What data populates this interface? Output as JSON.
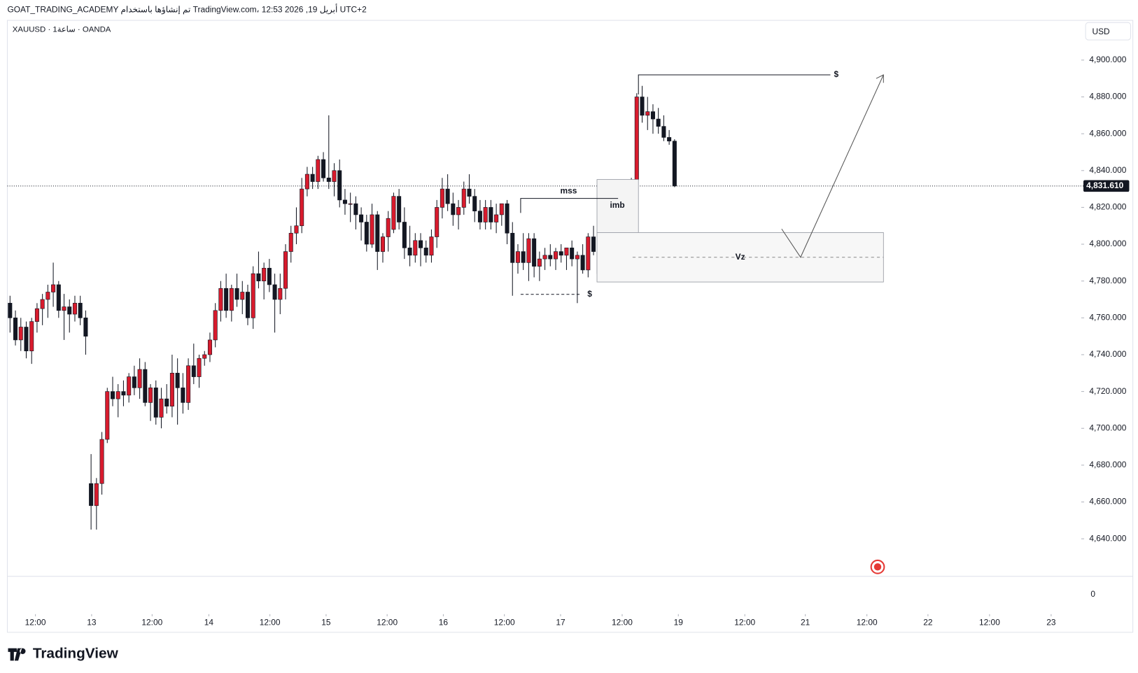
{
  "header": "GOAT_TRADING_ACADEMY تم إنشاؤها باستخدام TradingView.com، 12:53 2026 ,19 أبريل UTC+2",
  "symbol": "XAUUSD · 1ساعة · OANDA",
  "currency": "USD",
  "logo": "TradingView",
  "chart_data": {
    "type": "candlestick",
    "up_color": "#d81b2d",
    "down_color": "#131722",
    "candles": [
      [
        4768,
        4772,
        4752,
        4760
      ],
      [
        4760,
        4764,
        4745,
        4748
      ],
      [
        4748,
        4760,
        4742,
        4755
      ],
      [
        4755,
        4758,
        4738,
        4742
      ],
      [
        4742,
        4760,
        4735,
        4758
      ],
      [
        4758,
        4768,
        4752,
        4765
      ],
      [
        4765,
        4773,
        4756,
        4770
      ],
      [
        4770,
        4778,
        4760,
        4774
      ],
      [
        4774,
        4790,
        4766,
        4778
      ],
      [
        4778,
        4780,
        4760,
        4764
      ],
      [
        4764,
        4773,
        4748,
        4766
      ],
      [
        4766,
        4770,
        4752,
        4762
      ],
      [
        4762,
        4772,
        4758,
        4768
      ],
      [
        4768,
        4772,
        4756,
        4760
      ],
      [
        4760,
        4764,
        4740,
        4750
      ],
      [
        4670,
        4686,
        4645,
        4658
      ],
      [
        4658,
        4673,
        4645,
        4670
      ],
      [
        4670,
        4698,
        4664,
        4694
      ],
      [
        4694,
        4722,
        4692,
        4720
      ],
      [
        4720,
        4728,
        4712,
        4716
      ],
      [
        4716,
        4724,
        4706,
        4720
      ],
      [
        4720,
        4726,
        4712,
        4718
      ],
      [
        4718,
        4730,
        4714,
        4728
      ],
      [
        4728,
        4734,
        4718,
        4722
      ],
      [
        4722,
        4738,
        4716,
        4732
      ],
      [
        4732,
        4736,
        4712,
        4714
      ],
      [
        4714,
        4724,
        4704,
        4722
      ],
      [
        4722,
        4726,
        4702,
        4706
      ],
      [
        4706,
        4722,
        4700,
        4716
      ],
      [
        4716,
        4724,
        4708,
        4712
      ],
      [
        4712,
        4740,
        4706,
        4730
      ],
      [
        4730,
        4738,
        4702,
        4722
      ],
      [
        4722,
        4730,
        4708,
        4714
      ],
      [
        4714,
        4738,
        4710,
        4734
      ],
      [
        4734,
        4746,
        4724,
        4728
      ],
      [
        4728,
        4740,
        4722,
        4738
      ],
      [
        4738,
        4742,
        4734,
        4740
      ],
      [
        4740,
        4752,
        4736,
        4748
      ],
      [
        4748,
        4768,
        4744,
        4764
      ],
      [
        4764,
        4780,
        4758,
        4776
      ],
      [
        4776,
        4784,
        4760,
        4764
      ],
      [
        4764,
        4778,
        4758,
        4776
      ],
      [
        4776,
        4784,
        4766,
        4770
      ],
      [
        4770,
        4780,
        4762,
        4774
      ],
      [
        4774,
        4778,
        4756,
        4760
      ],
      [
        4760,
        4788,
        4754,
        4784
      ],
      [
        4784,
        4796,
        4776,
        4780
      ],
      [
        4780,
        4790,
        4770,
        4787
      ],
      [
        4787,
        4792,
        4774,
        4778
      ],
      [
        4778,
        4784,
        4752,
        4770
      ],
      [
        4770,
        4784,
        4762,
        4776
      ],
      [
        4776,
        4800,
        4770,
        4796
      ],
      [
        4796,
        4810,
        4790,
        4806
      ],
      [
        4806,
        4820,
        4800,
        4810
      ],
      [
        4810,
        4836,
        4806,
        4830
      ],
      [
        4830,
        4842,
        4826,
        4838
      ],
      [
        4838,
        4842,
        4830,
        4834
      ],
      [
        4834,
        4848,
        4830,
        4846
      ],
      [
        4846,
        4850,
        4834,
        4836
      ],
      [
        4836,
        4870,
        4830,
        4834
      ],
      [
        4834,
        4844,
        4826,
        4840
      ],
      [
        4840,
        4846,
        4820,
        4824
      ],
      [
        4824,
        4830,
        4816,
        4822
      ],
      [
        4822,
        4828,
        4812,
        4822
      ],
      [
        4822,
        4826,
        4808,
        4816
      ],
      [
        4816,
        4820,
        4802,
        4812
      ],
      [
        4812,
        4816,
        4796,
        4800
      ],
      [
        4800,
        4822,
        4798,
        4816
      ],
      [
        4816,
        4818,
        4786,
        4796
      ],
      [
        4796,
        4806,
        4790,
        4804
      ],
      [
        4804,
        4818,
        4796,
        4814
      ],
      [
        4808,
        4828,
        4806,
        4826
      ],
      [
        4826,
        4830,
        4808,
        4812
      ],
      [
        4812,
        4820,
        4792,
        4798
      ],
      [
        4798,
        4810,
        4788,
        4794
      ],
      [
        4794,
        4806,
        4790,
        4802
      ],
      [
        4802,
        4806,
        4788,
        4798
      ],
      [
        4798,
        4802,
        4790,
        4794
      ],
      [
        4794,
        4808,
        4790,
        4804
      ],
      [
        4804,
        4824,
        4798,
        4820
      ],
      [
        4820,
        4836,
        4814,
        4830
      ],
      [
        4830,
        4838,
        4818,
        4822
      ],
      [
        4822,
        4828,
        4810,
        4816
      ],
      [
        4816,
        4824,
        4808,
        4820
      ],
      [
        4820,
        4834,
        4816,
        4830
      ],
      [
        4830,
        4838,
        4822,
        4826
      ],
      [
        4826,
        4830,
        4812,
        4818
      ],
      [
        4818,
        4824,
        4808,
        4812
      ],
      [
        4812,
        4824,
        4808,
        4820
      ],
      [
        4820,
        4824,
        4808,
        4812
      ],
      [
        4812,
        4822,
        4806,
        4816
      ],
      [
        4816,
        4822,
        4810,
        4822
      ],
      [
        4822,
        4824,
        4800,
        4806
      ],
      [
        4806,
        4812,
        4772,
        4790
      ],
      [
        4790,
        4800,
        4784,
        4796
      ],
      [
        4796,
        4806,
        4786,
        4790
      ],
      [
        4790,
        4806,
        4780,
        4803
      ],
      [
        4803,
        4806,
        4782,
        4788
      ],
      [
        4788,
        4796,
        4780,
        4792
      ],
      [
        4792,
        4798,
        4786,
        4794
      ],
      [
        4794,
        4800,
        4788,
        4792
      ],
      [
        4792,
        4798,
        4786,
        4796
      ],
      [
        4796,
        4800,
        4790,
        4794
      ],
      [
        4794,
        4798,
        4786,
        4798
      ],
      [
        4798,
        4802,
        4788,
        4792
      ],
      [
        4792,
        4796,
        4768,
        4794
      ],
      [
        4794,
        4800,
        4784,
        4786
      ],
      [
        4786,
        4806,
        4782,
        4804
      ],
      [
        4804,
        4810,
        4794,
        4796
      ],
      [
        4796,
        4802,
        4780,
        4784
      ],
      [
        4784,
        4798,
        4780,
        4794
      ],
      [
        4794,
        4798,
        4782,
        4790
      ],
      [
        4790,
        4800,
        4784,
        4797
      ],
      [
        4797,
        4802,
        4786,
        4790
      ],
      [
        4790,
        4812,
        4786,
        4808
      ],
      [
        4808,
        4836,
        4804,
        4835
      ],
      [
        4835,
        4882,
        4832,
        4880
      ],
      [
        4880,
        4886,
        4866,
        4870
      ],
      [
        4870,
        4880,
        4862,
        4872
      ],
      [
        4872,
        4876,
        4860,
        4868
      ],
      [
        4868,
        4874,
        4860,
        4864
      ],
      [
        4864,
        4870,
        4856,
        4858
      ],
      [
        4858,
        4862,
        4854,
        4856
      ],
      [
        4856,
        4857,
        4831,
        4831.61
      ]
    ],
    "last_price": {
      "value": 4831.61,
      "label": "4,831.610"
    },
    "xlim": [
      -0.5,
      198
    ],
    "ylim": [
      4620,
      4920
    ],
    "yticks": [
      {
        "value": 4900,
        "label": "4,900.000"
      },
      {
        "value": 4880,
        "label": "4,880.000"
      },
      {
        "value": 4860,
        "label": "4,860.000"
      },
      {
        "value": 4840,
        "label": "4,840.000"
      },
      {
        "value": 4820,
        "label": "4,820.000"
      },
      {
        "value": 4800,
        "label": "4,800.000"
      },
      {
        "value": 4780,
        "label": "4,780.000"
      },
      {
        "value": 4760,
        "label": "4,760.000"
      },
      {
        "value": 4740,
        "label": "4,740.000"
      },
      {
        "value": 4720,
        "label": "4,720.000"
      },
      {
        "value": 4700,
        "label": "4,700.000"
      },
      {
        "value": 4680,
        "label": "4,680.000"
      },
      {
        "value": 4660,
        "label": "4,660.000"
      },
      {
        "value": 4640,
        "label": "4,640.000"
      }
    ],
    "xticks": [
      {
        "value": 4.7,
        "label": "12:00"
      },
      {
        "value": 15.1,
        "label": "13"
      },
      {
        "value": 26.3,
        "label": "12:00"
      },
      {
        "value": 36.8,
        "label": "14"
      },
      {
        "value": 48.1,
        "label": "12:00"
      },
      {
        "value": 58.5,
        "label": "15"
      },
      {
        "value": 69.8,
        "label": "12:00"
      },
      {
        "value": 80.2,
        "label": "16"
      },
      {
        "value": 91.5,
        "label": "12:00"
      },
      {
        "value": 101.9,
        "label": "17"
      },
      {
        "value": 113.3,
        "label": "12:00"
      },
      {
        "value": 123.7,
        "label": "19"
      },
      {
        "value": 136,
        "label": "12:00"
      },
      {
        "value": 147.2,
        "label": "21"
      },
      {
        "value": 158.6,
        "label": "12:00"
      },
      {
        "value": 169.9,
        "label": "22"
      },
      {
        "value": 181.3,
        "label": "12:00"
      },
      {
        "value": 192.7,
        "label": "23"
      }
    ],
    "volume_pane_tick": 0,
    "annotations": [
      "mss",
      "imb",
      "Vz",
      "$",
      "$"
    ]
  }
}
